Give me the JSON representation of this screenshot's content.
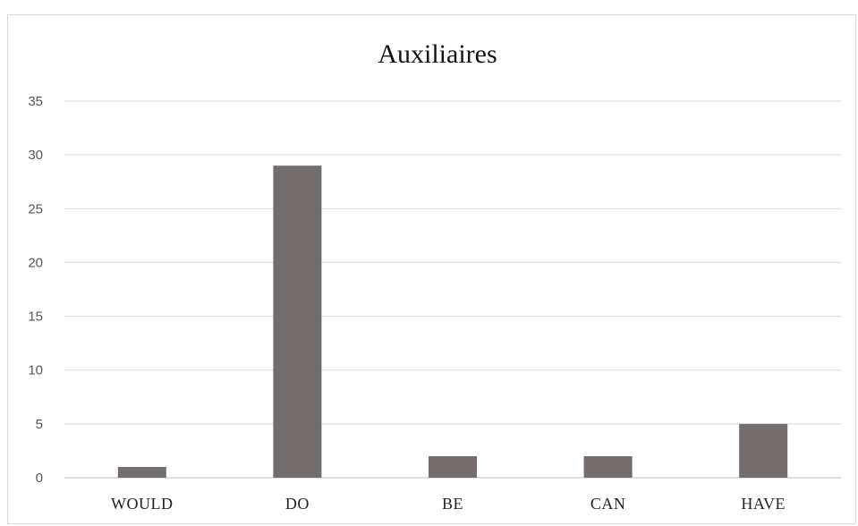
{
  "chart_data": {
    "type": "bar",
    "title": "Auxiliaires",
    "categories": [
      "WOULD",
      "DO",
      "BE",
      "CAN",
      "HAVE"
    ],
    "values": [
      1,
      29,
      2,
      2,
      5
    ],
    "xlabel": "",
    "ylabel": "",
    "ylim": [
      0,
      35
    ],
    "yticks": [
      "0",
      "5",
      "10",
      "15",
      "20",
      "25",
      "30",
      "35"
    ],
    "grid": true,
    "legend": "none",
    "bar_color": "#736e6d"
  }
}
